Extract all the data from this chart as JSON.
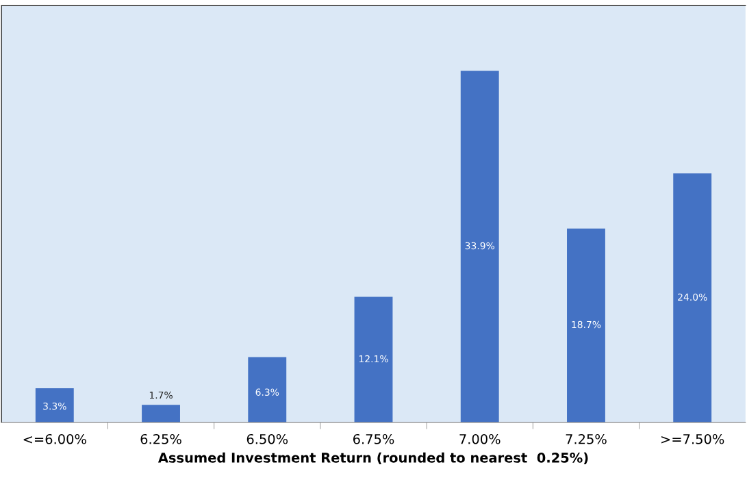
{
  "chart_data": {
    "type": "bar",
    "xlabel": "Assumed Investment Return (rounded to nearest  0.25%)",
    "categories": [
      "<=6.00%",
      "6.25%",
      "6.50%",
      "6.75%",
      "7.00%",
      "7.25%",
      ">=7.50%"
    ],
    "values": [
      3.3,
      1.7,
      6.3,
      12.1,
      33.9,
      18.7,
      24.0
    ],
    "value_labels": [
      "3.3%",
      "1.7%",
      "6.3%",
      "12.1%",
      "33.9%",
      "18.7%",
      "24.0%"
    ],
    "color": "#4472c4",
    "tick_labels": "x"
  }
}
